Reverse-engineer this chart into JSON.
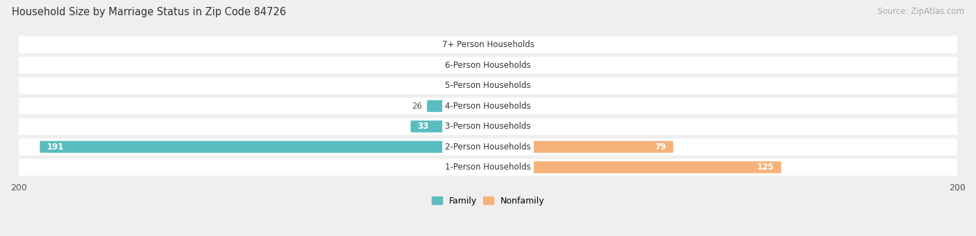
{
  "title": "Household Size by Marriage Status in Zip Code 84726",
  "source": "Source: ZipAtlas.com",
  "categories": [
    "7+ Person Households",
    "6-Person Households",
    "5-Person Households",
    "4-Person Households",
    "3-Person Households",
    "2-Person Households",
    "1-Person Households"
  ],
  "family_values": [
    0,
    0,
    0,
    26,
    33,
    191,
    0
  ],
  "nonfamily_values": [
    0,
    0,
    0,
    0,
    0,
    79,
    125
  ],
  "family_color": "#5bbcbf",
  "nonfamily_color": "#f5b37a",
  "family_color_dark": "#2aa0a4",
  "xlim": [
    -200,
    200
  ],
  "bar_height": 0.58,
  "bg_color": "#efefef",
  "title_fontsize": 10.5,
  "source_fontsize": 8.5,
  "label_fontsize": 8.5,
  "tick_fontsize": 9,
  "stub_size": 15
}
